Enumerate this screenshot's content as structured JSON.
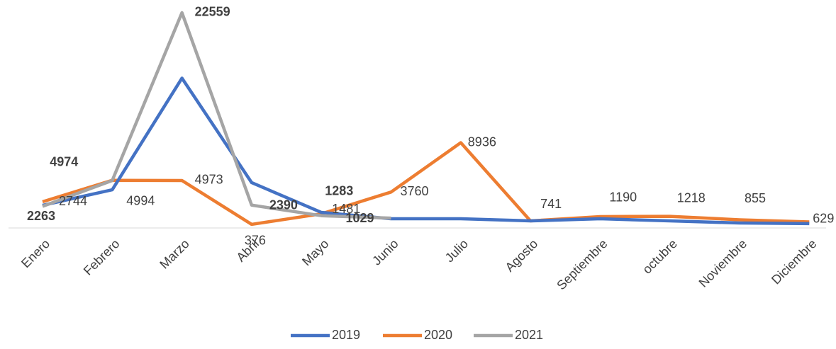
{
  "chart_data": {
    "type": "line",
    "categories": [
      "Enero",
      "Febrero",
      "Marzo",
      "Abril",
      "Mayo",
      "Junio",
      "Julio",
      "Agosto",
      "Septiembre",
      "octubre",
      "Noviembre",
      "Diciembre"
    ],
    "ylim": [
      0,
      23000
    ],
    "series": [
      {
        "name": "2019",
        "color": "#4472c4",
        "values": [
          2370,
          4000,
          15700,
          4750,
          1630,
          960,
          960,
          740,
          960,
          740,
          520,
          450
        ]
      },
      {
        "name": "2020",
        "color": "#ed7d31",
        "values": [
          2744,
          4994,
          4973,
          376,
          1481,
          3760,
          8936,
          741,
          1190,
          1218,
          855,
          629
        ]
      },
      {
        "name": "2021",
        "color": "#a5a5a5",
        "values": [
          2263,
          4974,
          22559,
          2390,
          1283,
          1029,
          null,
          null,
          null,
          null,
          null,
          null
        ]
      }
    ],
    "legend": "bottom"
  }
}
